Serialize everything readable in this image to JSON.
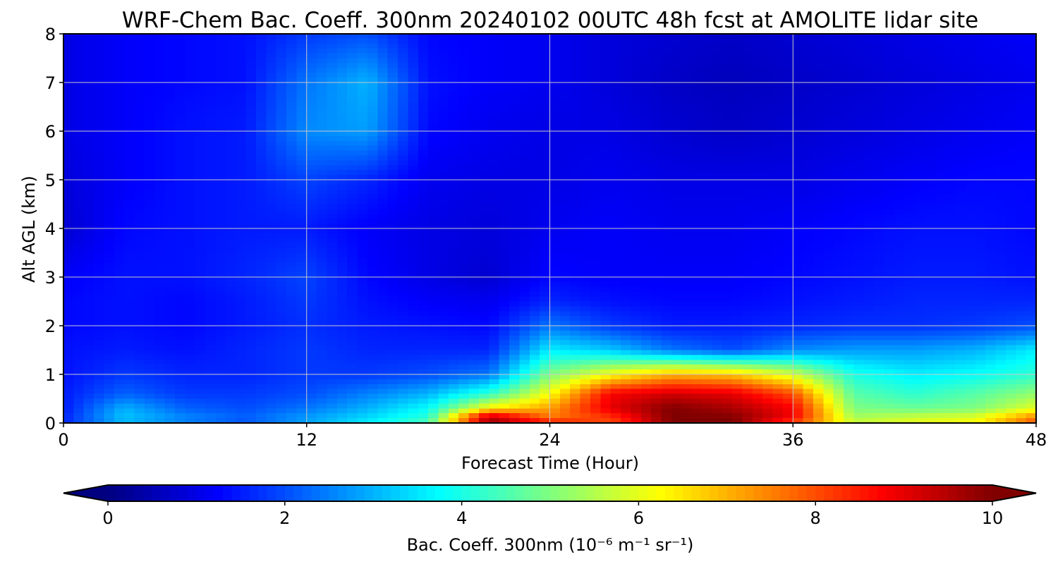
{
  "chart_data": {
    "type": "heatmap",
    "title": "WRF-Chem Bac. Coeff. 300nm  20240102 00UTC 48h fcst at AMOLITE lidar site",
    "xlabel": "Forecast Time (Hour)",
    "ylabel": "Alt AGL (km)",
    "xlim": [
      0,
      48
    ],
    "ylim": [
      0,
      8
    ],
    "x_ticks": [
      "0",
      "12",
      "24",
      "36",
      "48"
    ],
    "y_ticks": [
      "0",
      "1",
      "2",
      "3",
      "4",
      "5",
      "6",
      "7",
      "8"
    ],
    "grid": true,
    "colormap": "jet",
    "colorbar": {
      "label": "Bac. Coeff. 300nm  (10⁻⁶ m⁻¹ sr⁻¹)",
      "range": [
        0,
        10
      ],
      "ticks": [
        "0",
        "2",
        "4",
        "6",
        "8",
        "10"
      ],
      "extend": "both",
      "placement": "bottom"
    },
    "x": [
      0,
      3,
      6,
      9,
      12,
      15,
      18,
      21,
      24,
      27,
      30,
      33,
      36,
      39,
      42,
      45,
      48
    ],
    "y": [
      0,
      0.1,
      0.3,
      0.6,
      1.0,
      1.5,
      2.0,
      2.5,
      3.0,
      4.0,
      5.0,
      6.0,
      7.0,
      8.0
    ],
    "z": [
      [
        1.6,
        3.0,
        2.4,
        2.0,
        2.8,
        3.6,
        4.6,
        9.5,
        8.8,
        8.0,
        10.0,
        10.0,
        8.0,
        5.8,
        6.0,
        6.2,
        8.0
      ],
      [
        1.6,
        3.2,
        2.6,
        2.2,
        2.8,
        3.4,
        4.2,
        9.8,
        7.6,
        8.2,
        10.0,
        10.0,
        8.8,
        5.4,
        5.8,
        6.0,
        7.6
      ],
      [
        1.5,
        3.0,
        2.2,
        2.0,
        2.4,
        3.0,
        3.8,
        6.4,
        7.2,
        9.0,
        10.0,
        9.6,
        8.8,
        5.0,
        4.8,
        5.0,
        6.0
      ],
      [
        1.5,
        2.2,
        1.8,
        1.8,
        2.0,
        2.5,
        3.0,
        4.2,
        6.2,
        8.8,
        9.2,
        9.0,
        8.0,
        4.6,
        4.2,
        4.6,
        5.2
      ],
      [
        1.4,
        1.8,
        1.6,
        1.6,
        1.8,
        1.8,
        2.0,
        2.4,
        5.0,
        6.2,
        7.0,
        6.8,
        5.8,
        4.0,
        3.6,
        3.8,
        4.2
      ],
      [
        1.4,
        1.5,
        1.4,
        1.6,
        1.8,
        1.6,
        1.6,
        1.6,
        3.6,
        3.2,
        2.4,
        2.0,
        2.6,
        2.8,
        2.8,
        3.0,
        3.6
      ],
      [
        1.3,
        1.4,
        1.3,
        1.5,
        1.7,
        1.5,
        1.4,
        1.3,
        2.4,
        1.8,
        1.5,
        1.5,
        1.6,
        1.7,
        1.7,
        1.8,
        2.0
      ],
      [
        1.3,
        1.4,
        1.3,
        1.5,
        1.8,
        1.4,
        1.2,
        1.1,
        1.6,
        1.4,
        1.3,
        1.3,
        1.4,
        1.5,
        1.6,
        1.6,
        1.6
      ],
      [
        1.2,
        1.4,
        1.4,
        1.6,
        1.9,
        1.3,
        1.0,
        0.8,
        1.3,
        1.2,
        1.2,
        1.2,
        1.3,
        1.4,
        1.5,
        1.5,
        1.4
      ],
      [
        0.8,
        1.3,
        1.4,
        1.5,
        1.5,
        1.2,
        1.0,
        0.9,
        1.1,
        1.2,
        1.1,
        1.1,
        1.2,
        1.3,
        1.4,
        1.4,
        1.3
      ],
      [
        0.9,
        1.2,
        1.4,
        1.5,
        1.9,
        1.6,
        1.1,
        1.0,
        1.0,
        1.1,
        1.0,
        1.0,
        1.0,
        1.1,
        1.2,
        1.3,
        1.3
      ],
      [
        1.0,
        1.2,
        1.4,
        1.5,
        2.6,
        2.8,
        1.3,
        1.1,
        1.0,
        1.0,
        0.8,
        0.7,
        0.8,
        0.9,
        1.0,
        1.1,
        1.2
      ],
      [
        1.0,
        1.2,
        1.3,
        1.4,
        2.4,
        3.0,
        1.4,
        1.2,
        1.1,
        0.9,
        0.7,
        0.6,
        0.7,
        0.8,
        0.9,
        1.0,
        1.1
      ],
      [
        1.0,
        1.2,
        1.3,
        1.4,
        1.8,
        2.0,
        1.3,
        1.2,
        1.1,
        0.9,
        0.8,
        0.7,
        0.8,
        0.9,
        1.0,
        1.1,
        1.2
      ]
    ]
  }
}
